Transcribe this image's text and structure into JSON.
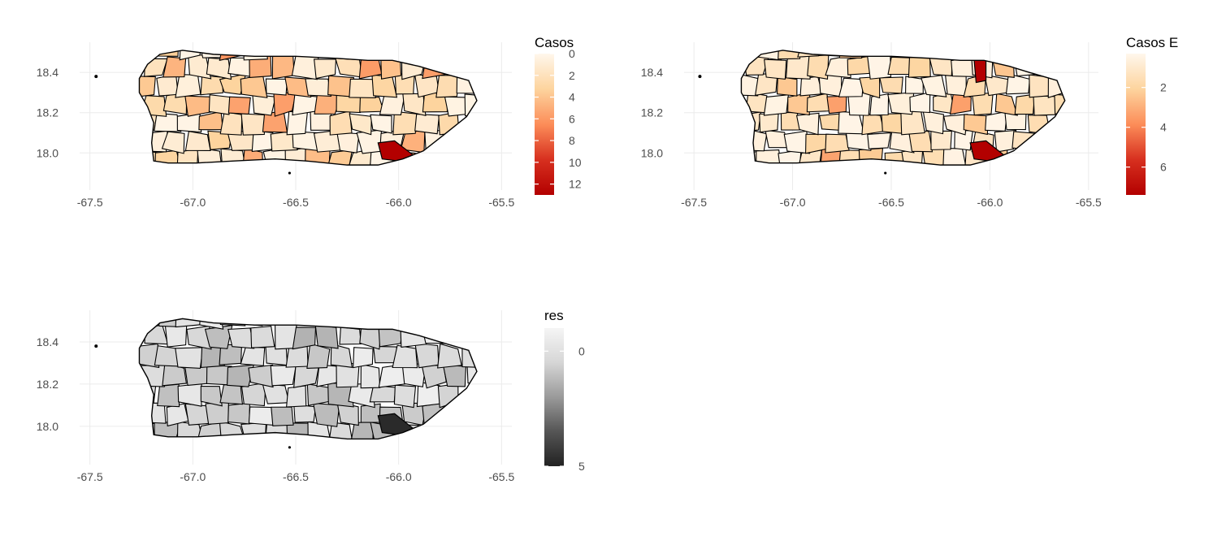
{
  "panels": [
    {
      "id": "casos",
      "legend_title": "Casos",
      "legend_ticks": [
        "0",
        "2",
        "4",
        "6",
        "8",
        "10",
        "12"
      ],
      "legend_tick_values": [
        0,
        2,
        4,
        6,
        8,
        10,
        12
      ],
      "legend_range": [
        0,
        13
      ],
      "palette": [
        "#fff7ec",
        "#fdd49e",
        "#fc8d59",
        "#d7301f",
        "#b30000"
      ],
      "x_ticks": [
        "-67.5",
        "-67.0",
        "-66.5",
        "-66.0",
        "-65.5"
      ],
      "x_tick_values": [
        -67.5,
        -67.0,
        -66.5,
        -66.0,
        -65.5
      ],
      "y_ticks": [
        "18.0",
        "18.2",
        "18.4"
      ],
      "y_tick_values": [
        18.0,
        18.2,
        18.4
      ],
      "xlim": [
        -67.55,
        -65.45
      ],
      "ylim": [
        17.88,
        18.55
      ],
      "highlight_fill": "#b30000"
    },
    {
      "id": "casos-esperados",
      "legend_title": "Casos E",
      "legend_ticks": [
        "2",
        "4",
        "6"
      ],
      "legend_tick_values": [
        2,
        4,
        6
      ],
      "legend_range": [
        0.3,
        7.4
      ],
      "palette": [
        "#fff7ec",
        "#fdd49e",
        "#fc8d59",
        "#d7301f",
        "#b30000"
      ],
      "x_ticks": [
        "-67.5",
        "-67.0",
        "-66.5",
        "-66.0",
        "-65.5"
      ],
      "x_tick_values": [
        -67.5,
        -67.0,
        -66.5,
        -66.0,
        -65.5
      ],
      "y_ticks": [
        "18.0",
        "18.2",
        "18.4"
      ],
      "y_tick_values": [
        18.0,
        18.2,
        18.4
      ],
      "xlim": [
        -67.55,
        -65.45
      ],
      "ylim": [
        17.88,
        18.55
      ],
      "highlight_fill": "#b30000"
    },
    {
      "id": "residuos",
      "legend_title": "res",
      "legend_ticks": [
        "0",
        "5"
      ],
      "legend_tick_values": [
        0,
        5
      ],
      "legend_range": [
        -1,
        5
      ],
      "palette": [
        "#f5f5f5",
        "#d6d6d6",
        "#9a9a9a",
        "#555555",
        "#222222"
      ],
      "x_ticks": [
        "-67.5",
        "-67.0",
        "-66.5",
        "-66.0",
        "-65.5"
      ],
      "x_tick_values": [
        -67.5,
        -67.0,
        -66.5,
        -66.0,
        -65.5
      ],
      "y_ticks": [
        "18.0",
        "18.2",
        "18.4"
      ],
      "y_tick_values": [
        18.0,
        18.2,
        18.4
      ],
      "xlim": [
        -67.55,
        -65.45
      ],
      "ylim": [
        17.88,
        18.55
      ],
      "highlight_fill": "#2a2a2a"
    }
  ]
}
